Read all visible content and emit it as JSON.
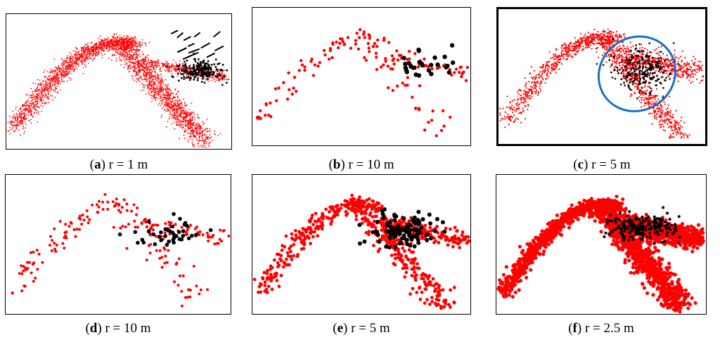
{
  "figure": {
    "colors": {
      "points": "#ff0000",
      "highlight": "#000000",
      "ellipse": "#1a6fc4",
      "frame": "#000000"
    },
    "panels": [
      {
        "id": "a",
        "letter": "a",
        "caption": "r = 1 m"
      },
      {
        "id": "b",
        "letter": "b",
        "caption": "r = 10 m"
      },
      {
        "id": "c",
        "letter": "c",
        "caption": "r = 5 m"
      },
      {
        "id": "d",
        "letter": "d",
        "caption": "r = 10 m"
      },
      {
        "id": "e",
        "letter": "e",
        "caption": "r = 5 m"
      },
      {
        "id": "f",
        "letter": "f",
        "caption": "r = 2.5 m"
      }
    ]
  }
}
